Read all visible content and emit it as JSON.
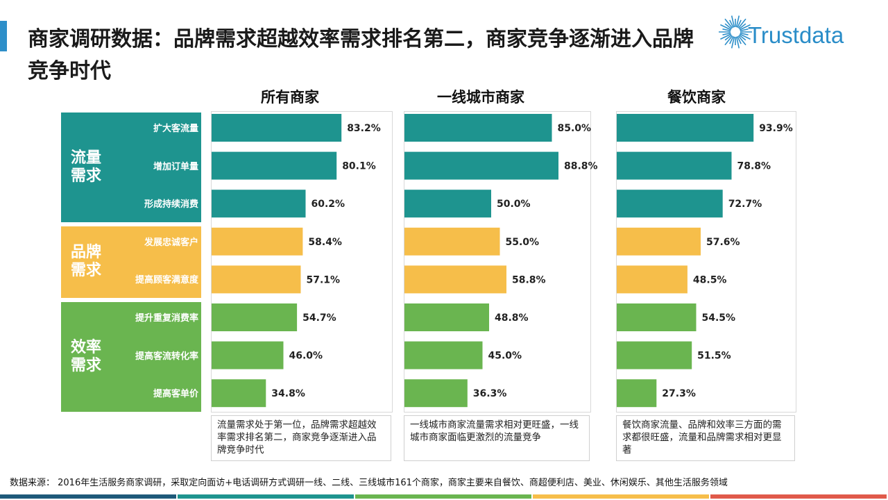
{
  "title": "商家调研数据：品牌需求超越效率需求排名第二，商家竞争逐渐进入品牌竞争时代",
  "logo": {
    "text": "Trustdata",
    "icon": "starburst-icon"
  },
  "groups": [
    {
      "name": "流量需求",
      "color": "#1e948f",
      "items": [
        "扩大客流量",
        "增加订单量",
        "形成持续消费"
      ]
    },
    {
      "name": "品牌需求",
      "color": "#f6be4a",
      "items": [
        "发展忠诚客户",
        "提高顾客满意度"
      ]
    },
    {
      "name": "效率需求",
      "color": "#6ab550",
      "items": [
        "提升重复消费率",
        "提高客流转化率",
        "提高客单价"
      ]
    }
  ],
  "colors": {
    "traffic": "#1e948f",
    "brand": "#f6be4a",
    "efficiency": "#6ab550",
    "accent": "#2e8fc9"
  },
  "chart_data": {
    "type": "bar",
    "orientation": "horizontal",
    "categories": [
      "扩大客流量",
      "增加订单量",
      "形成持续消费",
      "发展忠诚客户",
      "提高顾客满意度",
      "提升重复消费率",
      "提高客流转化率",
      "提高客单价"
    ],
    "category_groups": [
      "流量需求",
      "流量需求",
      "流量需求",
      "品牌需求",
      "品牌需求",
      "效率需求",
      "效率需求",
      "效率需求"
    ],
    "xlim": [
      0,
      100
    ],
    "unit": "%",
    "series": [
      {
        "name": "所有商家",
        "values": [
          83.2,
          80.1,
          60.2,
          58.4,
          57.1,
          54.7,
          46.0,
          34.8
        ],
        "labels": [
          "83.2%",
          "80.1%",
          "60.2%",
          "58.4%",
          "57.1%",
          "54.7%",
          "46.0%",
          "34.8%"
        ]
      },
      {
        "name": "一线城市商家",
        "values": [
          85.0,
          88.8,
          50.0,
          55.0,
          58.8,
          48.8,
          45.0,
          36.3
        ],
        "labels": [
          "85.0%",
          "88.8%",
          "50.0%",
          "55.0%",
          "58.8%",
          "48.8%",
          "45.0%",
          "36.3%"
        ]
      },
      {
        "name": "餐饮商家",
        "values": [
          93.9,
          78.8,
          72.7,
          57.6,
          48.5,
          54.5,
          51.5,
          27.3
        ],
        "labels": [
          "93.9%",
          "78.8%",
          "72.7%",
          "57.6%",
          "48.5%",
          "54.5%",
          "51.5%",
          "27.3%"
        ]
      }
    ]
  },
  "notes": [
    "流量需求处于第一位，品牌需求超越效率需求排名第二，商家竞争逐渐进入品牌竞争时代",
    "一线城市商家流量需求相对更旺盛，一线城市商家面临更激烈的流量竞争",
    "餐饮商家流量、品牌和效率三方面的需求都很旺盛，流量和品牌需求相对更显著"
  ],
  "source": "数据来源：  2016年生活服务商家调研，采取定向面访+电话调研方式调研一线、二线、三线城市161个商家，商家主要来自餐饮、商超便利店、美业、休闲娱乐、其他生活服务领域",
  "footer_colors": [
    "#1e5a7a",
    "#1e948f",
    "#6ab550",
    "#f6be4a",
    "#e05a4a"
  ]
}
